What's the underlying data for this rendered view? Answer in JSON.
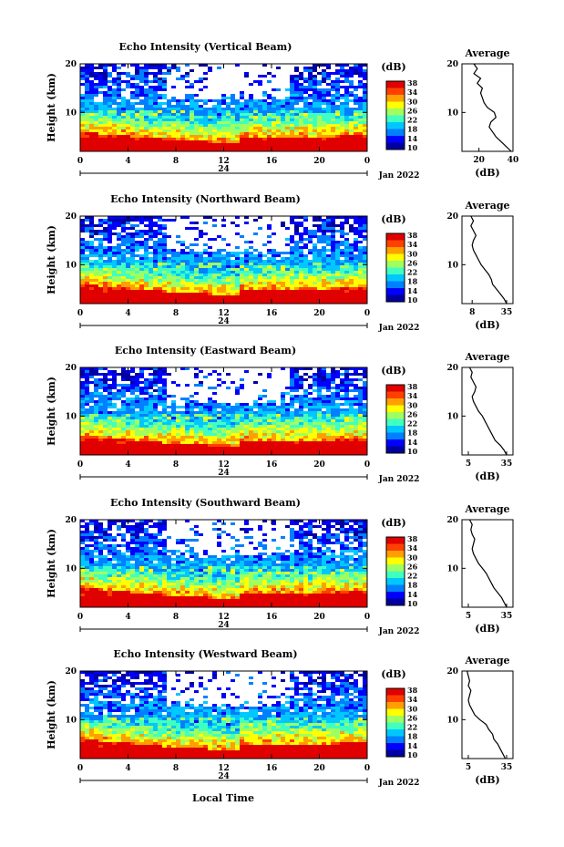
{
  "figure": {
    "xlabel": "Local Time",
    "day_label": "24",
    "month_label": "Jan 2022",
    "ylabel": "Height (km)",
    "colorbar_unit": "(dB)",
    "avg_title": "Average",
    "avg_xlabel": "(dB)",
    "x_ticks": [
      "0",
      "4",
      "8",
      "12",
      "16",
      "20",
      "0"
    ],
    "y_ticks": [
      "20",
      "10"
    ],
    "cb_ticks": [
      "38",
      "34",
      "30",
      "26",
      "22",
      "18",
      "14",
      "10"
    ],
    "colormap": [
      "#0000a0",
      "#0000ff",
      "#0080ff",
      "#00c8ff",
      "#40ffc0",
      "#a0ff60",
      "#ffff00",
      "#ffa000",
      "#ff4000",
      "#e00000"
    ]
  },
  "chart_data": [
    {
      "type": "heatmap",
      "title": "Echo Intensity (Vertical Beam)",
      "x": [
        0,
        24
      ],
      "ylim": [
        2,
        20
      ],
      "zlim": [
        10,
        38
      ],
      "avg": {
        "type": "line",
        "xlim": [
          10,
          40
        ],
        "x_ticks": [
          "20",
          "40"
        ],
        "height": [
          2,
          3,
          4,
          5,
          6,
          7,
          8,
          9,
          10,
          11,
          12,
          13,
          14,
          15,
          16,
          17,
          18,
          19,
          20
        ],
        "values": [
          39,
          36,
          33,
          30,
          28,
          26,
          27,
          30,
          29,
          25,
          23,
          22,
          21,
          22,
          19,
          21,
          17,
          19,
          17
        ]
      }
    },
    {
      "type": "heatmap",
      "title": "Echo Intensity (Northward Beam)",
      "x": [
        0,
        24
      ],
      "ylim": [
        2,
        20
      ],
      "zlim": [
        10,
        38
      ],
      "avg": {
        "type": "line",
        "xlim": [
          0,
          40
        ],
        "x_ticks": [
          "8",
          "35"
        ],
        "height": [
          2,
          3,
          4,
          5,
          6,
          7,
          8,
          9,
          10,
          11,
          12,
          13,
          14,
          15,
          16,
          17,
          18,
          19,
          20
        ],
        "values": [
          35,
          33,
          30,
          27,
          24,
          23,
          21,
          18,
          15,
          13,
          11,
          9,
          8,
          9,
          11,
          9,
          7,
          9,
          7
        ]
      }
    },
    {
      "type": "heatmap",
      "title": "Echo Intensity (Eastward Beam)",
      "x": [
        0,
        24
      ],
      "ylim": [
        2,
        20
      ],
      "zlim": [
        10,
        38
      ],
      "avg": {
        "type": "line",
        "xlim": [
          0,
          40
        ],
        "x_ticks": [
          "5",
          "35"
        ],
        "height": [
          2,
          3,
          4,
          5,
          6,
          7,
          8,
          9,
          10,
          11,
          12,
          13,
          14,
          15,
          16,
          17,
          18,
          19,
          20
        ],
        "values": [
          35,
          33,
          30,
          26,
          24,
          22,
          20,
          18,
          16,
          13,
          11,
          9,
          8,
          10,
          11,
          9,
          7,
          8,
          6
        ]
      }
    },
    {
      "type": "heatmap",
      "title": "Echo Intensity (Southward Beam)",
      "x": [
        0,
        24
      ],
      "ylim": [
        2,
        20
      ],
      "zlim": [
        10,
        38
      ],
      "avg": {
        "type": "line",
        "xlim": [
          0,
          40
        ],
        "x_ticks": [
          "5",
          "35"
        ],
        "height": [
          2,
          3,
          4,
          5,
          6,
          7,
          8,
          9,
          10,
          11,
          12,
          13,
          14,
          15,
          16,
          17,
          18,
          19,
          20
        ],
        "values": [
          35,
          33,
          31,
          28,
          25,
          23,
          21,
          19,
          16,
          13,
          11,
          9,
          8,
          9,
          10,
          8,
          7,
          8,
          6
        ]
      }
    },
    {
      "type": "heatmap",
      "title": "Echo Intensity (Westward Beam)",
      "x": [
        0,
        24
      ],
      "ylim": [
        2,
        20
      ],
      "zlim": [
        10,
        38
      ],
      "avg": {
        "type": "line",
        "xlim": [
          0,
          40
        ],
        "x_ticks": [
          "5",
          "35"
        ],
        "height": [
          2,
          3,
          4,
          5,
          6,
          7,
          8,
          9,
          10,
          11,
          12,
          13,
          14,
          15,
          16,
          17,
          18,
          19,
          20
        ],
        "values": [
          34,
          32,
          30,
          28,
          25,
          24,
          21,
          19,
          14,
          10,
          8,
          6,
          5,
          6,
          7,
          5,
          6,
          5,
          4
        ]
      }
    }
  ]
}
